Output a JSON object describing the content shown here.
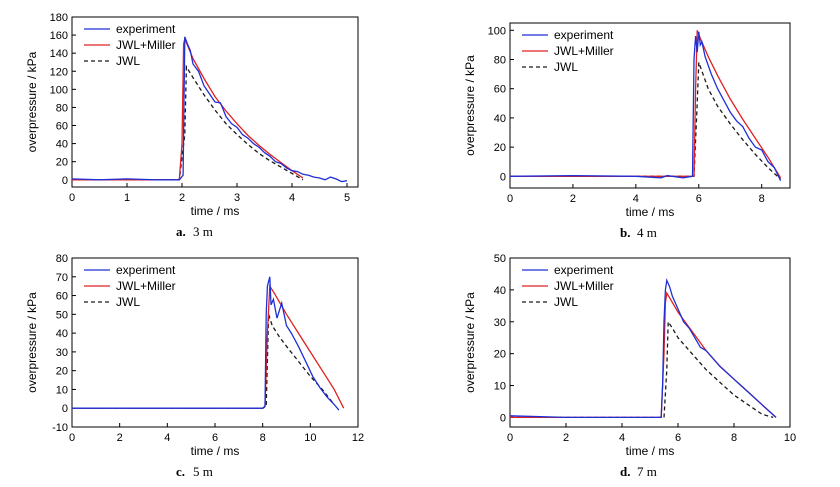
{
  "chart_data": [
    {
      "type": "line",
      "caption_letter": "a.",
      "caption_text": "3  m",
      "xlabel": "time / ms",
      "ylabel": "overpressure / kPa",
      "xlim": [
        0,
        5.2
      ],
      "ylim": [
        -8,
        180
      ],
      "xticks": [
        0,
        1,
        2,
        3,
        4,
        5
      ],
      "yticks": [
        0,
        20,
        40,
        60,
        80,
        100,
        120,
        140,
        160,
        180
      ],
      "legend_position": "top-left",
      "series": [
        {
          "name": "experiment",
          "color": "#1f2fd6",
          "dash": "solid",
          "x": [
            0,
            0.5,
            1.0,
            1.5,
            1.95,
            2.02,
            2.05,
            2.1,
            2.15,
            2.2,
            2.3,
            2.4,
            2.5,
            2.6,
            2.7,
            2.8,
            2.9,
            3.0,
            3.1,
            3.2,
            3.3,
            3.4,
            3.5,
            3.6,
            3.7,
            3.8,
            3.9,
            4.0,
            4.1,
            4.2,
            4.3,
            4.4,
            4.5,
            4.6,
            4.7,
            4.8,
            4.9,
            5.0
          ],
          "y": [
            1,
            0,
            1,
            0,
            0,
            5,
            158,
            150,
            143,
            128,
            120,
            104,
            95,
            86,
            85,
            70,
            62,
            58,
            50,
            46,
            40,
            36,
            30,
            26,
            20,
            18,
            13,
            10,
            9,
            6,
            5,
            3,
            2,
            0,
            3,
            1,
            -2,
            -1
          ]
        },
        {
          "name": "JWL+Miller",
          "color": "#e02020",
          "dash": "solid",
          "x": [
            0,
            1.0,
            1.95,
            2.0,
            2.03,
            2.05,
            2.2,
            2.4,
            2.6,
            2.8,
            3.0,
            3.2,
            3.4,
            3.6,
            3.8,
            4.0,
            4.2
          ],
          "y": [
            0,
            0,
            0,
            40,
            150,
            156,
            134,
            112,
            92,
            76,
            62,
            49,
            38,
            28,
            19,
            10,
            2
          ]
        },
        {
          "name": "JWL",
          "color": "#1a1a1a",
          "dash": "dashed",
          "x": [
            0,
            1.0,
            1.95,
            2.05,
            2.08,
            2.2,
            2.4,
            2.6,
            2.8,
            3.0,
            3.2,
            3.4,
            3.6,
            3.8,
            4.0,
            4.2
          ],
          "y": [
            0,
            0,
            0,
            50,
            125,
            113,
            94,
            77,
            62,
            50,
            39,
            29,
            21,
            14,
            7,
            0
          ]
        }
      ]
    },
    {
      "type": "line",
      "caption_letter": "b.",
      "caption_text": "4  m",
      "xlabel": "time / ms",
      "ylabel": "overpressure / kPa",
      "xlim": [
        0,
        8.9
      ],
      "ylim": [
        -8,
        105
      ],
      "xticks": [
        0,
        2,
        4,
        6,
        8
      ],
      "yticks": [
        0,
        20,
        40,
        60,
        80,
        100
      ],
      "legend_position": "top-left",
      "series": [
        {
          "name": "experiment",
          "color": "#1f2fd6",
          "dash": "solid",
          "x": [
            0,
            2,
            4,
            4.8,
            5.0,
            5.5,
            5.8,
            5.85,
            5.9,
            5.95,
            6.0,
            6.05,
            6.1,
            6.2,
            6.4,
            6.6,
            6.8,
            7.0,
            7.2,
            7.4,
            7.6,
            7.8,
            8.0,
            8.2,
            8.4,
            8.6
          ],
          "y": [
            0,
            0.5,
            0,
            -1,
            0.5,
            -1,
            0,
            80,
            96,
            85,
            99,
            90,
            92,
            82,
            70,
            60,
            52,
            44,
            38,
            34,
            26,
            20,
            18,
            10,
            6,
            -3
          ]
        },
        {
          "name": "JWL+Miller",
          "color": "#e02020",
          "dash": "solid",
          "x": [
            0,
            2,
            4,
            5.85,
            5.9,
            5.95,
            6.0,
            6.3,
            6.6,
            7.0,
            7.4,
            7.8,
            8.2,
            8.6
          ],
          "y": [
            0,
            0,
            0,
            0,
            60,
            100,
            97,
            82,
            69,
            53,
            39,
            26,
            13,
            -1
          ]
        },
        {
          "name": "JWL",
          "color": "#1a1a1a",
          "dash": "dashed",
          "x": [
            0,
            2,
            4,
            5.85,
            5.95,
            6.0,
            6.3,
            6.6,
            7.0,
            7.4,
            7.8,
            8.2,
            8.6
          ],
          "y": [
            0,
            0,
            0,
            0,
            50,
            78,
            60,
            48,
            36,
            25,
            15,
            6,
            -2
          ]
        }
      ]
    },
    {
      "type": "line",
      "caption_letter": "c.",
      "caption_text": "5  m",
      "xlabel": "time / ms",
      "ylabel": "overpressure / kPa",
      "xlim": [
        0,
        12
      ],
      "ylim": [
        -10,
        80
      ],
      "xticks": [
        0,
        2,
        4,
        6,
        8,
        10,
        12
      ],
      "yticks": [
        -10,
        0,
        10,
        20,
        30,
        40,
        50,
        60,
        70,
        80
      ],
      "legend_position": "top-left",
      "series": [
        {
          "name": "experiment",
          "color": "#1f2fd6",
          "dash": "solid",
          "x": [
            0,
            2,
            4,
            6,
            8.0,
            8.1,
            8.15,
            8.2,
            8.3,
            8.35,
            8.45,
            8.6,
            8.8,
            9.0,
            9.2,
            9.5,
            9.8,
            10.1,
            10.4,
            10.7,
            11.0,
            11.2
          ],
          "y": [
            0,
            0,
            0,
            0,
            0,
            1,
            50,
            65,
            70,
            55,
            58,
            48,
            56,
            44,
            40,
            33,
            25,
            17,
            11,
            6,
            2,
            -1
          ]
        },
        {
          "name": "JWL+Miller",
          "color": "#e02020",
          "dash": "solid",
          "x": [
            0,
            2,
            4,
            6,
            8.0,
            8.1,
            8.2,
            8.3,
            8.5,
            9.0,
            9.5,
            10.0,
            10.5,
            11.0,
            11.4
          ],
          "y": [
            0,
            0,
            0,
            0,
            0,
            1,
            40,
            65,
            61,
            50,
            40,
            30,
            20,
            10,
            0
          ]
        },
        {
          "name": "JWL",
          "color": "#1a1a1a",
          "dash": "dashed",
          "x": [
            0,
            2,
            4,
            6,
            8.0,
            8.15,
            8.25,
            8.4,
            8.7,
            9.0,
            9.5,
            10.0,
            10.5,
            11.0
          ],
          "y": [
            0,
            0,
            0,
            0,
            0,
            1,
            50,
            44,
            38,
            33,
            25,
            17,
            10,
            2
          ]
        }
      ]
    },
    {
      "type": "line",
      "caption_letter": "d.",
      "caption_text": "7  m",
      "xlabel": "time / ms",
      "ylabel": "overpressure / kPa",
      "xlim": [
        0,
        10
      ],
      "ylim": [
        -3,
        50
      ],
      "xticks": [
        0,
        2,
        4,
        6,
        8,
        10
      ],
      "yticks": [
        0,
        10,
        20,
        30,
        40,
        50
      ],
      "legend_position": "top-left",
      "series": [
        {
          "name": "experiment",
          "color": "#1f2fd6",
          "dash": "solid",
          "x": [
            0,
            2,
            4,
            5.0,
            5.4,
            5.45,
            5.5,
            5.55,
            5.6,
            5.7,
            5.8,
            5.9,
            6.0,
            6.2,
            6.4,
            6.6,
            6.8,
            7.0,
            7.5,
            8.0,
            8.5,
            9.0,
            9.5
          ],
          "y": [
            0.5,
            0,
            0,
            0,
            0,
            10,
            30,
            40,
            43,
            41,
            38,
            36,
            34,
            30,
            28,
            25,
            22,
            21,
            16,
            12,
            8,
            4,
            0
          ]
        },
        {
          "name": "JWL+Miller",
          "color": "#e02020",
          "dash": "solid",
          "x": [
            0,
            2,
            4,
            5.4,
            5.5,
            5.55,
            5.6,
            5.8,
            6.0,
            6.5,
            7.0,
            7.5,
            8.0,
            8.5,
            9.0,
            9.5
          ],
          "y": [
            0,
            0,
            0,
            0,
            20,
            36,
            39,
            36,
            33,
            27,
            21,
            16,
            12,
            8,
            4,
            0
          ]
        },
        {
          "name": "JWL",
          "color": "#1a1a1a",
          "dash": "dashed",
          "x": [
            0,
            2,
            4,
            5.5,
            5.6,
            5.65,
            5.8,
            6.0,
            6.5,
            7.0,
            7.5,
            8.0,
            8.5,
            9.0,
            9.4
          ],
          "y": [
            0,
            0,
            0,
            0,
            15,
            30,
            28,
            25,
            20,
            15,
            11,
            7,
            4,
            1,
            0
          ]
        }
      ]
    }
  ]
}
